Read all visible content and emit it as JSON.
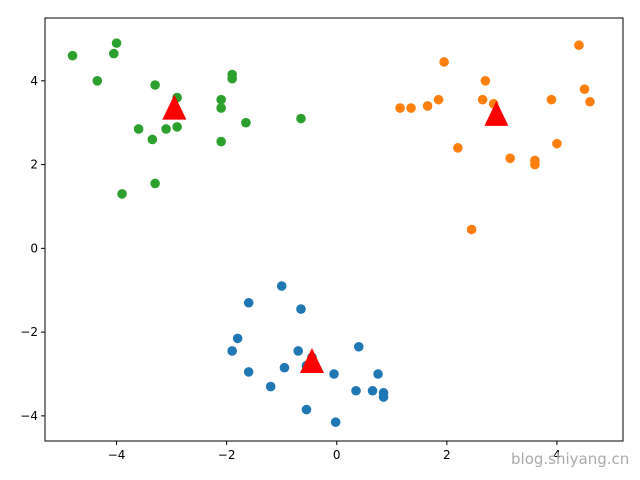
{
  "chart_data": {
    "type": "scatter",
    "title": "",
    "xlabel": "",
    "ylabel": "",
    "xlim": [
      -5.3,
      5.2
    ],
    "ylim": [
      -4.6,
      5.5
    ],
    "xticks": [
      -4,
      -2,
      0,
      2,
      4
    ],
    "yticks": [
      -4,
      -2,
      0,
      2,
      4
    ],
    "xtick_labels": [
      "−4",
      "−2",
      "0",
      "2",
      "4"
    ],
    "ytick_labels": [
      "−4",
      "−2",
      "0",
      "2",
      "4"
    ],
    "grid": false,
    "series": [
      {
        "color": "#1f77b4",
        "marker": "circle",
        "points": [
          [
            -1.0,
            -0.9
          ],
          [
            -0.65,
            -1.45
          ],
          [
            -1.6,
            -1.3
          ],
          [
            -1.8,
            -2.15
          ],
          [
            -1.9,
            -2.45
          ],
          [
            -1.6,
            -2.95
          ],
          [
            -1.2,
            -3.3
          ],
          [
            -0.95,
            -2.85
          ],
          [
            -0.7,
            -2.45
          ],
          [
            -0.55,
            -2.8
          ],
          [
            -0.45,
            -2.6
          ],
          [
            -0.55,
            -3.85
          ],
          [
            -0.05,
            -3.0
          ],
          [
            0.4,
            -2.35
          ],
          [
            0.75,
            -3.0
          ],
          [
            0.35,
            -3.4
          ],
          [
            0.65,
            -3.4
          ],
          [
            0.85,
            -3.45
          ],
          [
            0.85,
            -3.55
          ],
          [
            -0.02,
            -4.15
          ]
        ]
      },
      {
        "color": "#ff7f0e",
        "marker": "circle",
        "points": [
          [
            1.15,
            3.35
          ],
          [
            1.35,
            3.35
          ],
          [
            1.65,
            3.4
          ],
          [
            1.85,
            3.55
          ],
          [
            1.95,
            4.45
          ],
          [
            2.2,
            2.4
          ],
          [
            2.45,
            0.45
          ],
          [
            2.65,
            3.55
          ],
          [
            2.7,
            4.0
          ],
          [
            2.85,
            3.45
          ],
          [
            3.15,
            2.15
          ],
          [
            3.6,
            2.0
          ],
          [
            3.6,
            2.1
          ],
          [
            3.9,
            3.55
          ],
          [
            4.0,
            2.5
          ],
          [
            4.4,
            4.85
          ],
          [
            4.5,
            3.8
          ],
          [
            4.6,
            3.5
          ]
        ]
      },
      {
        "color": "#2ca02c",
        "marker": "circle",
        "points": [
          [
            -4.8,
            4.6
          ],
          [
            -4.35,
            4.0
          ],
          [
            -4.0,
            4.9
          ],
          [
            -4.05,
            4.65
          ],
          [
            -3.9,
            1.3
          ],
          [
            -3.6,
            2.85
          ],
          [
            -3.35,
            2.6
          ],
          [
            -3.3,
            3.9
          ],
          [
            -3.3,
            1.55
          ],
          [
            -3.1,
            2.85
          ],
          [
            -2.9,
            2.9
          ],
          [
            -2.9,
            3.6
          ],
          [
            -2.1,
            3.55
          ],
          [
            -2.1,
            3.35
          ],
          [
            -2.1,
            2.55
          ],
          [
            -1.9,
            4.15
          ],
          [
            -1.9,
            4.05
          ],
          [
            -1.65,
            3.0
          ],
          [
            -0.65,
            3.1
          ]
        ]
      },
      {
        "color": "#ff0000",
        "marker": "triangle",
        "points": [
          [
            -0.45,
            -2.75
          ],
          [
            2.9,
            3.15
          ],
          [
            -2.95,
            3.3
          ]
        ]
      }
    ]
  },
  "watermark": "blog.shiyang.cn"
}
